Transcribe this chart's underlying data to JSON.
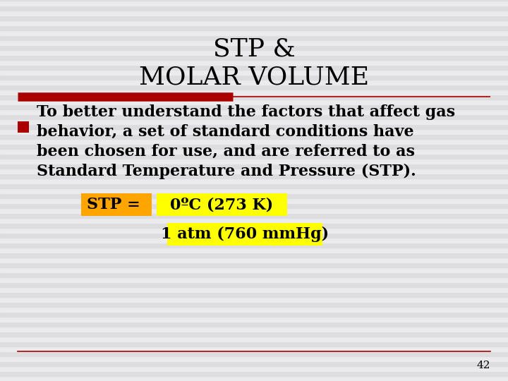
{
  "title_line1": "STP &",
  "title_line2": "MOLAR VOLUME",
  "title_fontsize": 26,
  "title_color": "#000000",
  "bg_color": "#e8e8ea",
  "stripe_light": "#ebebed",
  "stripe_dark": "#dddde0",
  "divider_color": "#aa0000",
  "bullet_color": "#aa0000",
  "body_text_line1": "To better understand the factors that affect gas",
  "body_text_line2": "behavior, a set of standard conditions have",
  "body_text_line3": "been chosen for use, and are referred to as",
  "body_text_line4": "Standard Temperature and Pressure (STP).",
  "body_fontsize": 16,
  "stp_label": "STP = ",
  "stp_label_bg": "#ffa500",
  "stp_val1": "0ºC (273 K)",
  "stp_val1_bg": "#ffff00",
  "stp_val2": "1 atm (760 mmHg)",
  "stp_val2_bg": "#ffff00",
  "page_number": "42",
  "bottom_line_color": "#aa0000"
}
